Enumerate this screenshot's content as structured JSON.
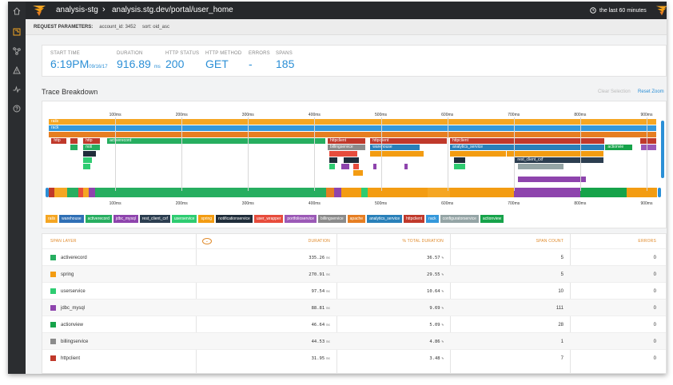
{
  "header": {
    "app_name": "analysis-stg",
    "breadcrumb_sep": "›",
    "path": "analysis.stg.dev/portal/user_home",
    "time_range": "the last 60 minutes"
  },
  "request_params": {
    "label": "REQUEST PARAMETERS:",
    "account": "account_id: 3452",
    "sort": "sort: oid_asc"
  },
  "stats": {
    "start_time": {
      "label": "START TIME",
      "value": "6:19PM",
      "sub": "09/16/17"
    },
    "duration": {
      "label": "DURATION",
      "value": "916.89",
      "unit": "ms"
    },
    "http_status": {
      "label": "HTTP STATUS",
      "value": "200"
    },
    "http_method": {
      "label": "HTTP METHOD",
      "value": "GET"
    },
    "errors": {
      "label": "ERRORS",
      "value": "-"
    },
    "spans": {
      "label": "SPANS",
      "value": "185"
    }
  },
  "trace": {
    "title": "Trace Breakdown",
    "clear_selection": "Clear Selection",
    "reset_zoom": "Reset Zoom",
    "ticks": [
      "100ms",
      "200ms",
      "300ms",
      "400ms",
      "500ms",
      "600ms",
      "700ms",
      "800ms",
      "900ms"
    ],
    "bar_labels": {
      "rails": "rails",
      "rack": "rack",
      "http1": "http",
      "http2": "http",
      "activerecord": "activerecord",
      "noti": "noti",
      "httpclient1": "httpclient",
      "httpclient2": "httpclient",
      "httpclient3": "httpclient",
      "billingservice": "billingservice",
      "warehouse": "warehouse",
      "analytics_service": "analytics_service",
      "actionview": "actionvie",
      "rest_client_cxf": "rest_client_cxf"
    }
  },
  "legend": [
    {
      "label": "rails",
      "color": "#f5a623"
    },
    {
      "label": "warehouse",
      "color": "#2f6fb5"
    },
    {
      "label": "activerecord",
      "color": "#27ae60"
    },
    {
      "label": "jdbc_mysql",
      "color": "#8e44ad"
    },
    {
      "label": "rest_client_cxf",
      "color": "#2c3e50"
    },
    {
      "label": "userservice",
      "color": "#2ecc71"
    },
    {
      "label": "spring",
      "color": "#f39c12"
    },
    {
      "label": "notificationservice",
      "color": "#1f2d3a"
    },
    {
      "label": "user_wrapper",
      "color": "#e74c3c"
    },
    {
      "label": "portfolioservice",
      "color": "#9b59b6"
    },
    {
      "label": "billingservice",
      "color": "#8b8b8b"
    },
    {
      "label": "apache",
      "color": "#e67e22"
    },
    {
      "label": "analytics_service",
      "color": "#2980b9"
    },
    {
      "label": "httpclient",
      "color": "#c0392b"
    },
    {
      "label": "rack",
      "color": "#3498db"
    },
    {
      "label": "configuratorservice",
      "color": "#95a5a6"
    },
    {
      "label": "actionview",
      "color": "#16a34a"
    }
  ],
  "table": {
    "headers": {
      "layer": "SPAN LAYER",
      "sort_icon": "⌄",
      "duration": "DURATION",
      "pct": "% TOTAL DURATION",
      "count": "SPAN COUNT",
      "errors": "ERRORS"
    },
    "rows": [
      {
        "name": "activerecord",
        "color": "#27ae60",
        "duration": "335.26",
        "unit": "ms",
        "pct": "36.57",
        "pct_unit": "%",
        "count": "5",
        "errors": "0"
      },
      {
        "name": "spring",
        "color": "#f39c12",
        "duration": "270.91",
        "unit": "ms",
        "pct": "29.55",
        "pct_unit": "%",
        "count": "5",
        "errors": "0"
      },
      {
        "name": "userservice",
        "color": "#2ecc71",
        "duration": "97.54",
        "unit": "ms",
        "pct": "10.64",
        "pct_unit": "%",
        "count": "10",
        "errors": "0"
      },
      {
        "name": "jdbc_mysql",
        "color": "#8e44ad",
        "duration": "88.81",
        "unit": "ms",
        "pct": "9.69",
        "pct_unit": "%",
        "count": "111",
        "errors": "0"
      },
      {
        "name": "actionview",
        "color": "#16a34a",
        "duration": "46.64",
        "unit": "ms",
        "pct": "5.09",
        "pct_unit": "%",
        "count": "28",
        "errors": "0"
      },
      {
        "name": "billingservice",
        "color": "#8b8b8b",
        "duration": "44.53",
        "unit": "ms",
        "pct": "4.86",
        "pct_unit": "%",
        "count": "1",
        "errors": "0"
      },
      {
        "name": "httpclient",
        "color": "#c0392b",
        "duration": "31.95",
        "unit": "ms",
        "pct": "3.48",
        "pct_unit": "%",
        "count": "7",
        "errors": "0"
      }
    ]
  }
}
